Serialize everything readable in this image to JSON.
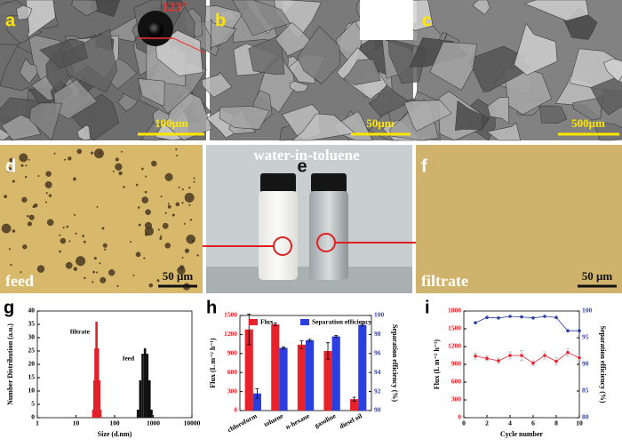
{
  "panels": {
    "a": {
      "label": "a",
      "scale_bar": "100μm",
      "contact_angle": "123°"
    },
    "b": {
      "label": "b",
      "scale_bar": "50μm"
    },
    "c": {
      "label": "c",
      "scale_bar": "500μm"
    },
    "d": {
      "label": "d",
      "caption": "feed",
      "scale_bar": "50 μm"
    },
    "e": {
      "label": "e",
      "caption": "water-in-toluene"
    },
    "f": {
      "label": "f",
      "caption": "filtrate",
      "scale_bar": "50 μm"
    },
    "g": {
      "label": "g"
    },
    "h": {
      "label": "h"
    },
    "i": {
      "label": "i"
    }
  },
  "chart_data": [
    {
      "type": "bar",
      "xlabel": "Size (d.nm)",
      "ylabel": "Number Distribution (a.u.)",
      "xscale": "log",
      "xlim": [
        1,
        10000
      ],
      "xticks": [
        1,
        10,
        100,
        1000,
        10000
      ],
      "ylim": [
        0,
        40
      ],
      "yticks": [
        0,
        5,
        10,
        15,
        20,
        25,
        30,
        35,
        40
      ],
      "series": [
        {
          "name": "filtrate",
          "color": "#e0202a",
          "x": [
            28,
            30,
            32,
            34,
            37,
            40,
            43
          ],
          "values": [
            3,
            14,
            26,
            36,
            26,
            14,
            3
          ]
        },
        {
          "name": "feed",
          "color": "#111111",
          "x": [
            400,
            460,
            530,
            610,
            700,
            800,
            900
          ],
          "values": [
            3,
            14,
            24,
            26,
            24,
            14,
            3
          ]
        }
      ]
    },
    {
      "type": "bar",
      "ylabel": "Flux (L m⁻² h⁻¹)",
      "y2label": "Separation efficiency (%)",
      "legend": "top",
      "categories": [
        "chloroform",
        "toluene",
        "n-hexane",
        "gasoline",
        "diesel oil"
      ],
      "ylim": [
        0,
        1500
      ],
      "yticks": [
        0,
        300,
        600,
        900,
        1200,
        1500
      ],
      "y2lim": [
        90,
        100
      ],
      "y2ticks": [
        90,
        92,
        94,
        96,
        98,
        100
      ],
      "series": [
        {
          "name": "Flux",
          "color": "#e8222a",
          "values": [
            1280,
            1360,
            1040,
            940,
            180
          ],
          "errors": [
            240,
            20,
            60,
            130,
            30
          ]
        },
        {
          "name": "Separation efficiency",
          "color": "#2b3fe0",
          "axis": "y2",
          "values": [
            91.8,
            96.6,
            97.4,
            97.8,
            99.0
          ],
          "errors": [
            0.5,
            0.1,
            0.1,
            0.1,
            0.1
          ]
        }
      ]
    },
    {
      "type": "line",
      "xlabel": "Cycle number",
      "ylabel": "Flux (L m⁻² h⁻¹)",
      "y2label": "Separation efficiency (%)",
      "x": [
        1,
        2,
        3,
        4,
        5,
        6,
        7,
        8,
        9,
        10
      ],
      "xlim": [
        0,
        10
      ],
      "xticks": [
        0,
        2,
        4,
        6,
        8,
        10
      ],
      "ylim": [
        0,
        1800
      ],
      "yticks": [
        0,
        300,
        600,
        900,
        1200,
        1500,
        1800
      ],
      "y2lim": [
        80,
        100
      ],
      "y2ticks": [
        80,
        85,
        90,
        95,
        100
      ],
      "series": [
        {
          "name": "Flux",
          "color": "#e8222a",
          "values": [
            1040,
            1000,
            960,
            1050,
            1050,
            920,
            1050,
            950,
            1100,
            1010
          ],
          "errors": [
            50,
            40,
            40,
            60,
            80,
            40,
            60,
            60,
            60,
            40
          ]
        },
        {
          "name": "Separation efficiency",
          "color": "#2b3fa0",
          "axis": "y2",
          "values": [
            97.8,
            98.8,
            98.7,
            99.0,
            98.9,
            98.7,
            99.0,
            98.8,
            96.3,
            96.3
          ]
        }
      ]
    }
  ]
}
